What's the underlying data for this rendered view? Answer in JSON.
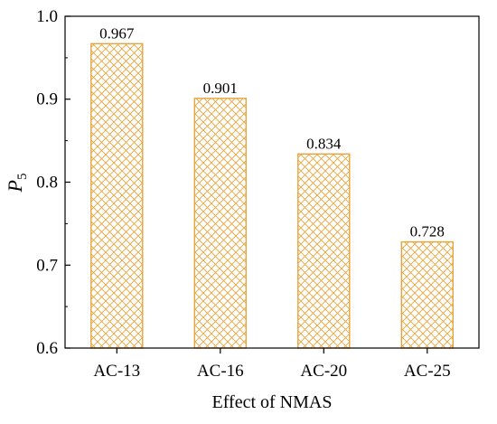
{
  "chart_data": {
    "type": "bar",
    "categories": [
      "AC-13",
      "AC-16",
      "AC-20",
      "AC-25"
    ],
    "values": [
      0.967,
      0.901,
      0.834,
      0.728
    ],
    "value_labels": [
      "0.967",
      "0.901",
      "0.834",
      "0.728"
    ],
    "xlabel": "Effect of NMAS",
    "ylabel": {
      "base": "P",
      "subscript": "5"
    },
    "ylim": [
      0.6,
      1.0
    ],
    "yticks": [
      0.6,
      0.7,
      0.8,
      0.9,
      1.0
    ],
    "ytick_labels": [
      "0.6",
      "0.7",
      "0.8",
      "0.9",
      "1.0"
    ],
    "grid": false,
    "legend": "none",
    "bar_fill": "crosshatch",
    "bar_color": "#e8a33a"
  }
}
